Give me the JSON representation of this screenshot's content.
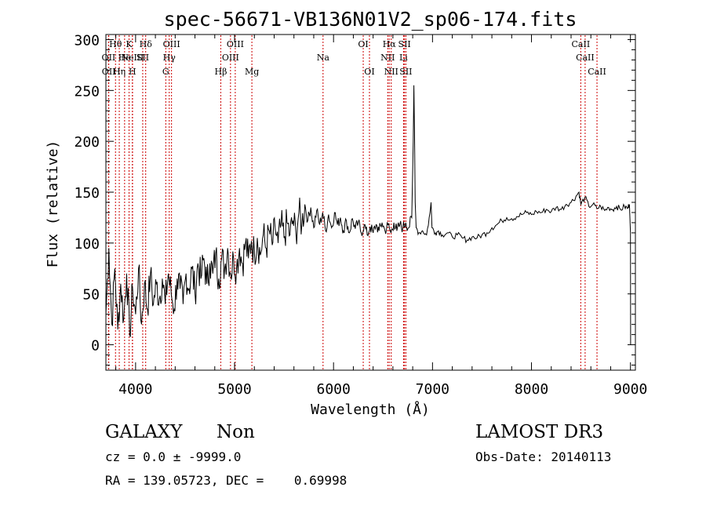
{
  "chart_data": {
    "type": "line",
    "title": "spec-56671-VB136N01V2_sp06-174.fits",
    "xlabel": "Wavelength (Å)",
    "ylabel": "Flux (relative)",
    "xlim": [
      3700,
      9050
    ],
    "ylim": [
      -25,
      305
    ],
    "xticks": [
      4000,
      5000,
      6000,
      7000,
      8000,
      9000
    ],
    "yticks": [
      0,
      50,
      100,
      150,
      200,
      250,
      300
    ],
    "grid": false,
    "series": [
      {
        "name": "flux",
        "color": "#000000",
        "points": [
          [
            3700,
            30
          ],
          [
            3730,
            95
          ],
          [
            3760,
            20
          ],
          [
            3790,
            75
          ],
          [
            3820,
            15
          ],
          [
            3850,
            60
          ],
          [
            3880,
            25
          ],
          [
            3910,
            70
          ],
          [
            3940,
            10
          ],
          [
            3970,
            55
          ],
          [
            4000,
            30
          ],
          [
            4030,
            75
          ],
          [
            4060,
            20
          ],
          [
            4090,
            60
          ],
          [
            4120,
            35
          ],
          [
            4150,
            70
          ],
          [
            4180,
            40
          ],
          [
            4210,
            60
          ],
          [
            4240,
            45
          ],
          [
            4270,
            65
          ],
          [
            4300,
            40
          ],
          [
            4330,
            70
          ],
          [
            4360,
            50
          ],
          [
            4390,
            35
          ],
          [
            4420,
            65
          ],
          [
            4450,
            55
          ],
          [
            4480,
            40
          ],
          [
            4510,
            70
          ],
          [
            4540,
            55
          ],
          [
            4570,
            75
          ],
          [
            4600,
            50
          ],
          [
            4630,
            80
          ],
          [
            4660,
            65
          ],
          [
            4690,
            85
          ],
          [
            4720,
            60
          ],
          [
            4750,
            80
          ],
          [
            4780,
            70
          ],
          [
            4810,
            90
          ],
          [
            4840,
            65
          ],
          [
            4870,
            85
          ],
          [
            4900,
            75
          ],
          [
            4930,
            95
          ],
          [
            4960,
            70
          ],
          [
            4990,
            85
          ],
          [
            5020,
            75
          ],
          [
            5050,
            95
          ],
          [
            5080,
            80
          ],
          [
            5110,
            100
          ],
          [
            5140,
            85
          ],
          [
            5170,
            102
          ],
          [
            5200,
            90
          ],
          [
            5230,
            105
          ],
          [
            5260,
            88
          ],
          [
            5290,
            108
          ],
          [
            5320,
            95
          ],
          [
            5350,
            112
          ],
          [
            5380,
            98
          ],
          [
            5410,
            115
          ],
          [
            5440,
            100
          ],
          [
            5470,
            118
          ],
          [
            5500,
            105
          ],
          [
            5530,
            120
          ],
          [
            5560,
            108
          ],
          [
            5590,
            122
          ],
          [
            5620,
            110
          ],
          [
            5650,
            130
          ],
          [
            5680,
            118
          ],
          [
            5710,
            138
          ],
          [
            5740,
            122
          ],
          [
            5770,
            135
          ],
          [
            5800,
            115
          ],
          [
            5830,
            132
          ],
          [
            5860,
            118
          ],
          [
            5890,
            130
          ],
          [
            5920,
            112
          ],
          [
            5950,
            128
          ],
          [
            5980,
            115
          ],
          [
            6010,
            130
          ],
          [
            6040,
            118
          ],
          [
            6070,
            125
          ],
          [
            6100,
            112
          ],
          [
            6130,
            122
          ],
          [
            6160,
            110
          ],
          [
            6190,
            124
          ],
          [
            6220,
            114
          ],
          [
            6250,
            120
          ],
          [
            6280,
            110
          ],
          [
            6310,
            118
          ],
          [
            6340,
            108
          ],
          [
            6370,
            116
          ],
          [
            6400,
            110
          ],
          [
            6430,
            118
          ],
          [
            6460,
            112
          ],
          [
            6490,
            120
          ],
          [
            6520,
            112
          ],
          [
            6550,
            118
          ],
          [
            6580,
            110
          ],
          [
            6610,
            120
          ],
          [
            6640,
            112
          ],
          [
            6670,
            118
          ],
          [
            6700,
            115
          ],
          [
            6730,
            120
          ],
          [
            6760,
            115
          ],
          [
            6790,
            125
          ],
          [
            6805,
            200
          ],
          [
            6812,
            255
          ],
          [
            6818,
            210
          ],
          [
            6825,
            140
          ],
          [
            6835,
            115
          ],
          [
            6860,
            110
          ],
          [
            6900,
            112
          ],
          [
            6940,
            108
          ],
          [
            6975,
            130
          ],
          [
            6985,
            140
          ],
          [
            6995,
            115
          ],
          [
            7030,
            110
          ],
          [
            7060,
            112
          ],
          [
            7100,
            108
          ],
          [
            7150,
            110
          ],
          [
            7200,
            106
          ],
          [
            7250,
            108
          ],
          [
            7300,
            105
          ],
          [
            7350,
            103
          ],
          [
            7400,
            106
          ],
          [
            7450,
            105
          ],
          [
            7500,
            108
          ],
          [
            7550,
            110
          ],
          [
            7600,
            115
          ],
          [
            7650,
            118
          ],
          [
            7700,
            122
          ],
          [
            7750,
            125
          ],
          [
            7800,
            124
          ],
          [
            7850,
            126
          ],
          [
            7900,
            128
          ],
          [
            7950,
            130
          ],
          [
            8000,
            128
          ],
          [
            8050,
            131
          ],
          [
            8100,
            130
          ],
          [
            8150,
            133
          ],
          [
            8200,
            131
          ],
          [
            8250,
            135
          ],
          [
            8300,
            133
          ],
          [
            8350,
            138
          ],
          [
            8400,
            140
          ],
          [
            8450,
            146
          ],
          [
            8480,
            150
          ],
          [
            8500,
            138
          ],
          [
            8540,
            145
          ],
          [
            8580,
            136
          ],
          [
            8620,
            138
          ],
          [
            8660,
            134
          ],
          [
            8700,
            136
          ],
          [
            8740,
            132
          ],
          [
            8780,
            135
          ],
          [
            8820,
            133
          ],
          [
            8860,
            136
          ],
          [
            8900,
            133
          ],
          [
            8940,
            136
          ],
          [
            8970,
            134
          ],
          [
            8990,
            138
          ],
          [
            9000,
            110
          ],
          [
            9002,
            0
          ]
        ]
      }
    ],
    "line_markers": [
      {
        "label": "OII",
        "x": 3727,
        "row": 2
      },
      {
        "label": "OII",
        "x": 3729,
        "row": 3
      },
      {
        "label": "Hθ",
        "x": 3797,
        "row": 1
      },
      {
        "label": "Hη",
        "x": 3835,
        "row": 3
      },
      {
        "label": "He",
        "x": 3889,
        "row": 2
      },
      {
        "label": "K",
        "x": 3934,
        "row": 1
      },
      {
        "label": "H",
        "x": 3968,
        "row": 3
      },
      {
        "label": "NeIII",
        "x": 3969,
        "row": 2
      },
      {
        "label": "Hδ",
        "x": 4102,
        "row": 1
      },
      {
        "label": "SII",
        "x": 4072,
        "row": 2
      },
      {
        "label": "OIII",
        "x": 4363,
        "row": 1
      },
      {
        "label": "Hγ",
        "x": 4340,
        "row": 2
      },
      {
        "label": "G",
        "x": 4305,
        "row": 3
      },
      {
        "label": "OIII",
        "x": 5007,
        "row": 1
      },
      {
        "label": "OIII",
        "x": 4959,
        "row": 2
      },
      {
        "label": "Hβ",
        "x": 4861,
        "row": 3
      },
      {
        "label": "Mg",
        "x": 5175,
        "row": 3
      },
      {
        "label": "Na",
        "x": 5894,
        "row": 2
      },
      {
        "label": "OI",
        "x": 6300,
        "row": 1
      },
      {
        "label": "OI",
        "x": 6363,
        "row": 3
      },
      {
        "label": "Hα",
        "x": 6563,
        "row": 1
      },
      {
        "label": "NII",
        "x": 6548,
        "row": 2
      },
      {
        "label": "NII",
        "x": 6583,
        "row": 3
      },
      {
        "label": "SII",
        "x": 6717,
        "row": 1
      },
      {
        "label": "Li",
        "x": 6707,
        "row": 2
      },
      {
        "label": "SII",
        "x": 6731,
        "row": 3
      },
      {
        "label": "CaII",
        "x": 8498,
        "row": 1
      },
      {
        "label": "CaII",
        "x": 8542,
        "row": 2
      },
      {
        "label": "CaII",
        "x": 8662,
        "row": 3
      }
    ],
    "marker_color": "#cc0000"
  },
  "info": {
    "class": "GALAXY",
    "subclass": "Non",
    "cz_line": "cz = 0.0 ± -9999.0",
    "radec_line": "RA = 139.05723, DEC =    0.69998",
    "survey": "LAMOST DR3",
    "obs_date": "Obs-Date: 20140113"
  }
}
